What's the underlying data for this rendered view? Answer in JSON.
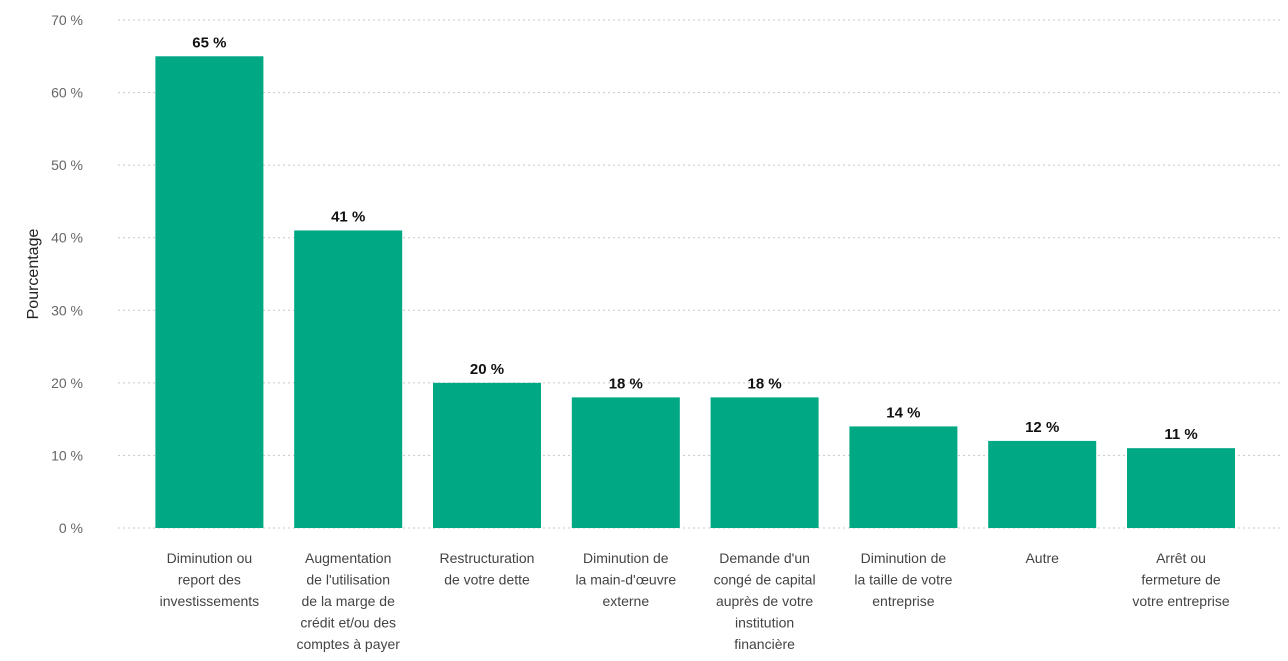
{
  "chart_data": {
    "type": "bar",
    "ylabel": "Pourcentage",
    "ylim": [
      0,
      70
    ],
    "y_ticks": [
      0,
      10,
      20,
      30,
      40,
      50,
      60,
      70
    ],
    "y_tick_labels": [
      "0 %",
      "10 %",
      "20 %",
      "30 %",
      "40 %",
      "50 %",
      "60 %",
      "70 %"
    ],
    "grid": true,
    "bar_color": "#00a884",
    "categories": [
      [
        "Diminution ou",
        "report des",
        "investissements"
      ],
      [
        "Augmentation",
        "de l'utilisation",
        "de la marge de",
        "crédit et/ou des",
        "comptes à payer"
      ],
      [
        "Restructuration",
        "de votre dette"
      ],
      [
        "Diminution de",
        "la main-d'œuvre",
        "externe"
      ],
      [
        "Demande d'un",
        "congé de capital",
        "auprès de votre",
        "institution",
        "financière"
      ],
      [
        "Diminution de",
        "la taille de votre",
        "entreprise"
      ],
      [
        "Autre"
      ],
      [
        "Arrêt ou",
        "fermeture de",
        "votre entreprise"
      ]
    ],
    "values": [
      65,
      41,
      20,
      18,
      18,
      14,
      12,
      11
    ],
    "data_labels": [
      "65 %",
      "41 %",
      "20 %",
      "18 %",
      "18 %",
      "14 %",
      "12 %",
      "11 %"
    ]
  }
}
